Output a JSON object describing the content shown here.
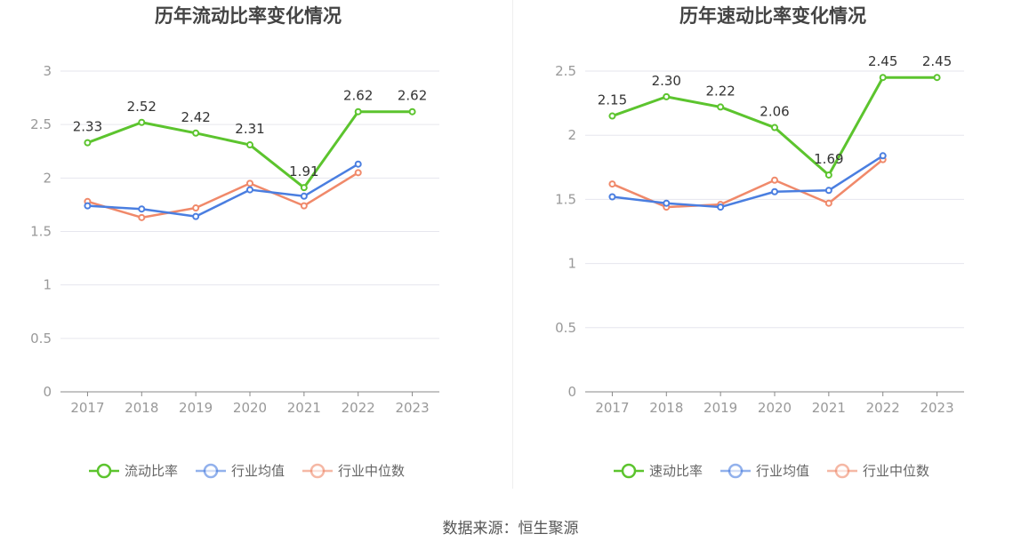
{
  "colors": {
    "primary": "#5cc42e",
    "avg": "#4a7ee0",
    "median": "#f0896a",
    "grid": "#e6e6ee",
    "axis": "#888888"
  },
  "source": "数据来源：恒生聚源",
  "chart_data": [
    {
      "type": "line",
      "title": "历年流动比率变化情况",
      "categories": [
        "2017",
        "2018",
        "2019",
        "2020",
        "2021",
        "2022",
        "2023"
      ],
      "ylim": [
        0,
        3
      ],
      "yticks": [
        "0",
        "0.5",
        "1",
        "1.5",
        "2",
        "2.5",
        "3"
      ],
      "grid": true,
      "legend_position": "bottom",
      "series": [
        {
          "name": "流动比率",
          "values": [
            2.33,
            2.52,
            2.42,
            2.31,
            1.91,
            2.62,
            2.62
          ],
          "labels": [
            "2.33",
            "2.52",
            "2.42",
            "2.31",
            "1.91",
            "2.62",
            "2.62"
          ]
        },
        {
          "name": "行业均值",
          "values": [
            1.74,
            1.71,
            1.64,
            1.89,
            1.83,
            2.13,
            null
          ]
        },
        {
          "name": "行业中位数",
          "values": [
            1.78,
            1.63,
            1.72,
            1.95,
            1.74,
            2.05,
            null
          ]
        }
      ]
    },
    {
      "type": "line",
      "title": "历年速动比率变化情况",
      "categories": [
        "2017",
        "2018",
        "2019",
        "2020",
        "2021",
        "2022",
        "2023"
      ],
      "ylim": [
        0,
        2.5
      ],
      "yticks": [
        "0",
        "0.5",
        "1",
        "1.5",
        "2",
        "2.5"
      ],
      "grid": true,
      "legend_position": "bottom",
      "series": [
        {
          "name": "速动比率",
          "values": [
            2.15,
            2.3,
            2.22,
            2.06,
            1.69,
            2.45,
            2.45
          ],
          "labels": [
            "2.15",
            "2.30",
            "2.22",
            "2.06",
            "1.69",
            "2.45",
            "2.45"
          ]
        },
        {
          "name": "行业均值",
          "values": [
            1.52,
            1.47,
            1.44,
            1.56,
            1.57,
            1.84,
            null
          ]
        },
        {
          "name": "行业中位数",
          "values": [
            1.62,
            1.44,
            1.46,
            1.65,
            1.47,
            1.81,
            null
          ]
        }
      ]
    }
  ]
}
